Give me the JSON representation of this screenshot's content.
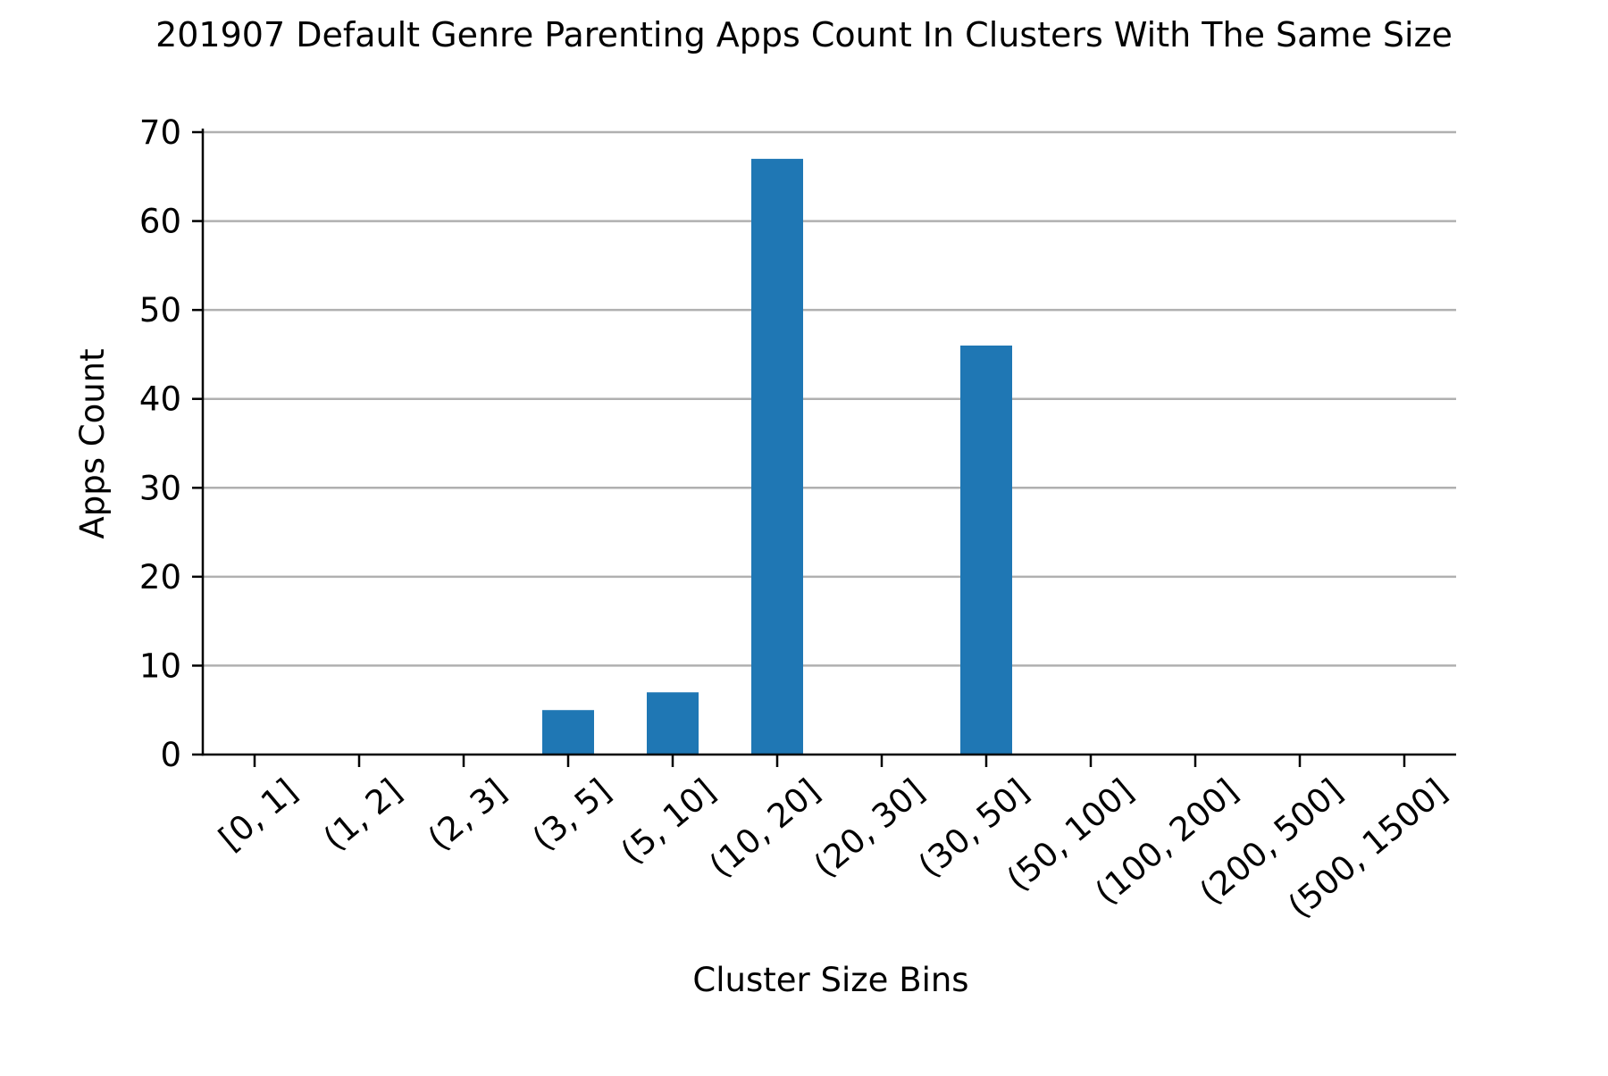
{
  "chart_data": {
    "type": "bar",
    "title": "201907 Default Genre Parenting Apps Count In Clusters With The Same Size",
    "xlabel": "Cluster Size Bins",
    "ylabel": "Apps Count",
    "categories": [
      "[0, 1]",
      "(1, 2]",
      "(2, 3]",
      "(3, 5]",
      "(5, 10]",
      "(10, 20]",
      "(20, 30]",
      "(30, 50]",
      "(50, 100]",
      "(100, 200]",
      "(200, 500]",
      "(500, 1500]"
    ],
    "values": [
      0,
      0,
      0,
      5,
      7,
      67,
      0,
      46,
      0,
      0,
      0,
      0
    ],
    "ylim": [
      0,
      70
    ],
    "yticks": [
      0,
      10,
      20,
      30,
      40,
      50,
      60,
      70
    ],
    "grid": "horizontal",
    "legend": "none",
    "bar_color": "#1f77b4",
    "grid_color": "#b0b0b0"
  }
}
